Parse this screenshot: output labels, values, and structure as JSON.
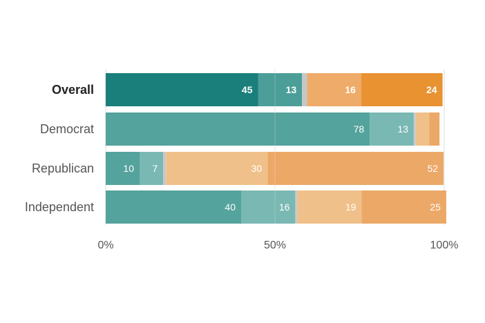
{
  "chart_data": {
    "type": "bar",
    "orientation": "horizontal",
    "stacked": true,
    "categories": [
      "Overall",
      "Democrat",
      "Republican",
      "Independent"
    ],
    "bold_category": "Overall",
    "series": [
      {
        "values": [
          45,
          78,
          10,
          40
        ],
        "labels": [
          "45",
          "78",
          "10",
          "40"
        ]
      },
      {
        "values": [
          13,
          13,
          7,
          16
        ],
        "labels": [
          "13",
          "13",
          "7",
          "16"
        ]
      },
      {
        "values": [
          1.5,
          0.6,
          0.8,
          0.6
        ],
        "labels": [
          "",
          "",
          "",
          ""
        ]
      },
      {
        "values": [
          16,
          4,
          30,
          19
        ],
        "labels": [
          "16",
          "",
          "30",
          "19"
        ]
      },
      {
        "values": [
          24,
          3,
          52,
          25
        ],
        "labels": [
          "24",
          "",
          "52",
          "25"
        ]
      }
    ],
    "colors": {
      "overall": [
        "#1a7f7a",
        "#4c9e98",
        "#c7c7c7",
        "#efab69",
        "#e89232"
      ],
      "parties": [
        "#54a39c",
        "#7ab8b3",
        "#c9c9c9",
        "#f0c08a",
        "#eca867"
      ]
    },
    "xlim": [
      0,
      100
    ],
    "xticks": [
      0,
      50,
      100
    ],
    "xtick_labels": [
      "0%",
      "50%",
      "100%"
    ],
    "gridlines": true,
    "legend": "none"
  }
}
